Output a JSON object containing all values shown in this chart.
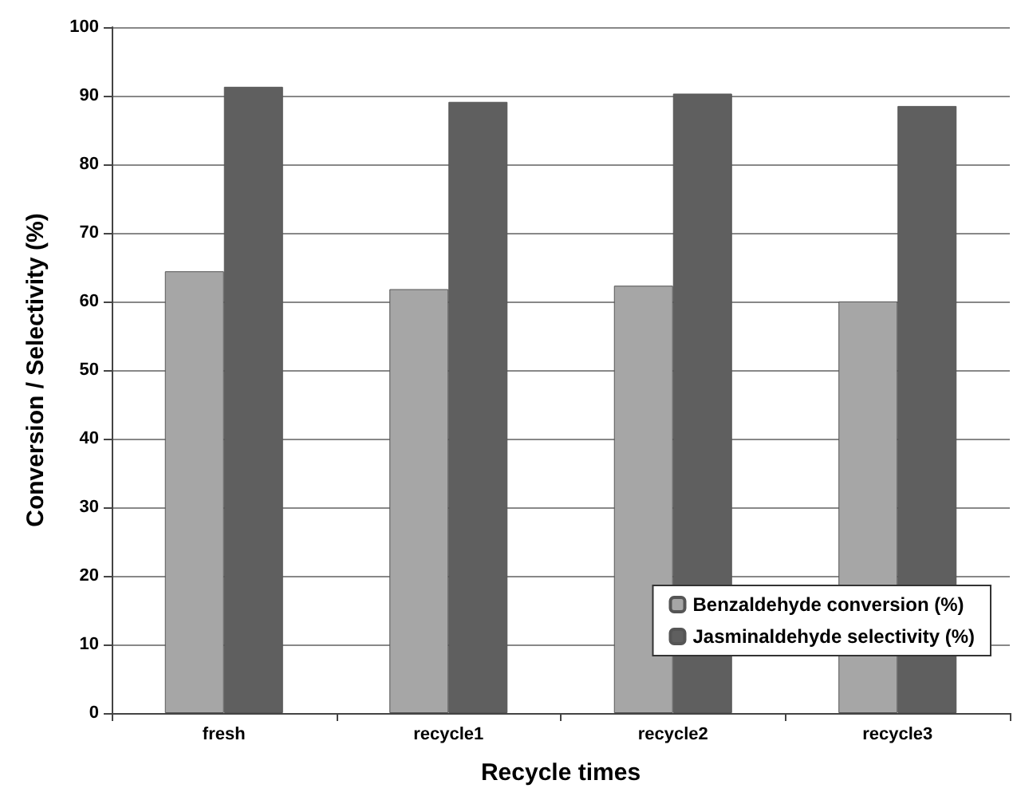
{
  "chart_data": {
    "type": "bar",
    "xlabel": "Recycle times",
    "ylabel": "Conversion / Selectivity (%)",
    "categories": [
      "fresh",
      "recycle1",
      "recycle2",
      "recycle3"
    ],
    "series": [
      {
        "name": "Benzaldehyde conversion (%)",
        "color": "#a6a6a6",
        "values": [
          64.4,
          61.8,
          62.3,
          60.0
        ]
      },
      {
        "name": "Jasminaldehyde selectivity (%)",
        "color": "#5f5f5f",
        "values": [
          91.3,
          89.1,
          90.3,
          88.5
        ]
      }
    ],
    "ylim": [
      0,
      100
    ],
    "yticks": [
      0,
      10,
      20,
      30,
      40,
      50,
      60,
      70,
      80,
      90,
      100
    ],
    "grid": "y",
    "legend": "bottom right"
  }
}
